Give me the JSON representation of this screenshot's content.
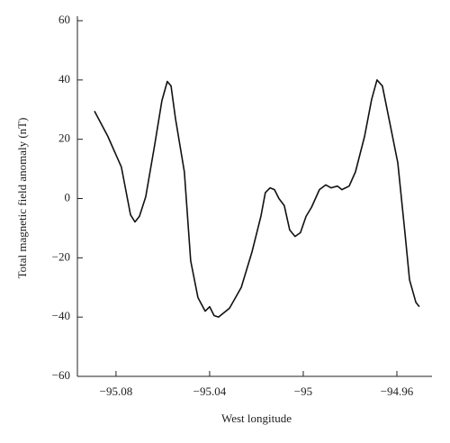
{
  "chart_data": {
    "type": "line",
    "x_label": "West longitude",
    "y_label": "Total magnetic field anomaly (nT)",
    "xlim": [
      -95.0965,
      -94.945
    ],
    "ylim": [
      -60,
      60
    ],
    "xticks": [
      {
        "value": -95.08,
        "label": "−95.08"
      },
      {
        "value": -95.04,
        "label": "−95.04"
      },
      {
        "value": -95,
        "label": "−95"
      },
      {
        "value": -94.96,
        "label": "−94.96"
      }
    ],
    "yticks": [
      {
        "value": -60,
        "label": "−60"
      },
      {
        "value": -40,
        "label": "−40"
      },
      {
        "value": -20,
        "label": "−20"
      },
      0,
      20,
      40,
      60
    ],
    "series": [
      {
        "color": "#111111",
        "x": [
          -95.0892,
          -95.0835,
          -95.0777,
          -95.0738,
          -95.0719,
          -95.07,
          -95.0673,
          -95.0635,
          -95.0604,
          -95.0581,
          -95.0565,
          -95.0546,
          -95.0508,
          -95.0481,
          -95.045,
          -95.0419,
          -95.04,
          -95.0381,
          -95.0362,
          -95.0315,
          -95.0265,
          -95.0219,
          -95.0181,
          -95.0162,
          -95.0142,
          -95.0123,
          -95.0104,
          -95.0081,
          -95.0058,
          -95.0035,
          -95.0012,
          -94.9988,
          -94.9965,
          -94.9931,
          -94.9904,
          -94.9881,
          -94.9854,
          -94.9835,
          -94.9804,
          -94.9777,
          -94.9738,
          -94.9708,
          -94.9685,
          -94.9662,
          -94.9635,
          -94.9596,
          -94.9565,
          -94.9546,
          -94.9519,
          -94.9504
        ],
        "values": [
          29.5,
          21,
          10.6,
          -5.5,
          -7.9,
          -6,
          0.6,
          18,
          33,
          39.5,
          38,
          27,
          9,
          -21,
          -33.4,
          -38,
          -36.5,
          -39.5,
          -40,
          -37,
          -30,
          -18,
          -6,
          2,
          3.6,
          3,
          0,
          -2.4,
          -10.6,
          -12.8,
          -11.5,
          -6,
          -3,
          3,
          4.6,
          3.6,
          4.2,
          3,
          4.2,
          9,
          21,
          33.4,
          40,
          38,
          27.4,
          12,
          -12,
          -27.4,
          -35,
          -36.5
        ]
      }
    ]
  }
}
